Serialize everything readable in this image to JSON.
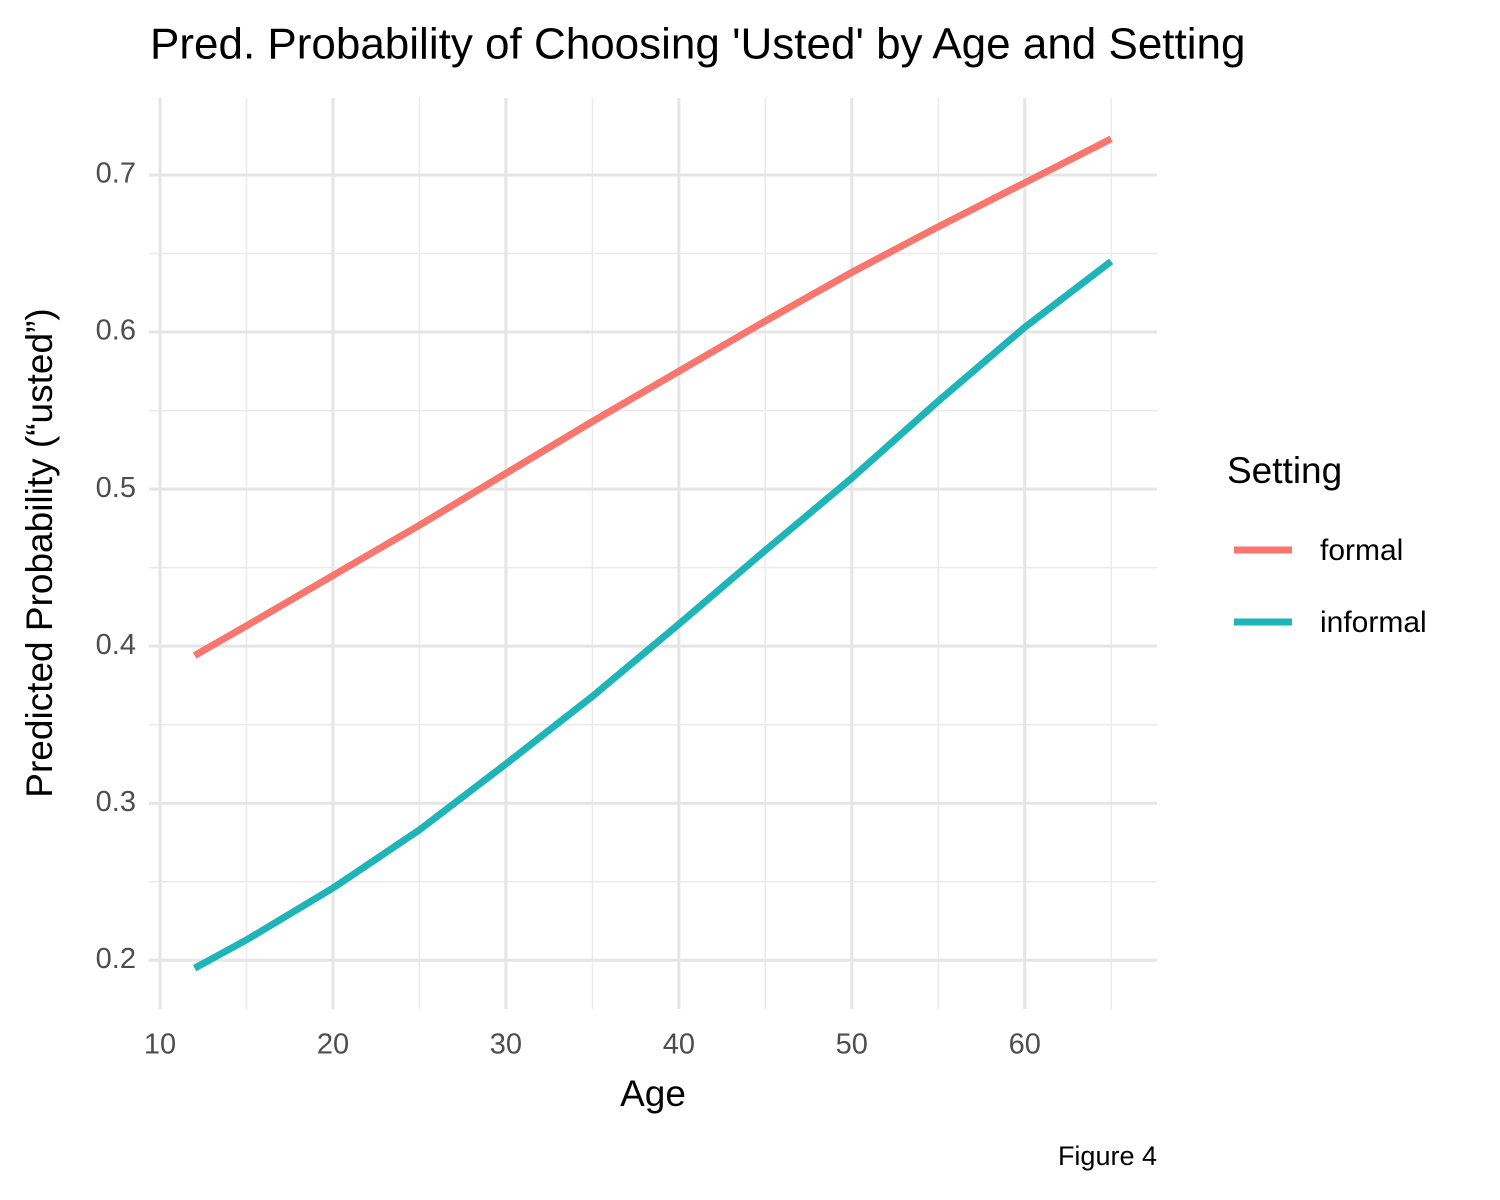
{
  "chart_data": {
    "type": "line",
    "title": "Pred. Probability of Choosing 'Usted' by Age and Setting",
    "x_label": "Age",
    "y_label": "Predicted Probability (“usted”)",
    "caption": "Figure 4",
    "legend_title": "Setting",
    "legend_position": "right",
    "grid": true,
    "x": [
      12,
      15,
      20,
      25,
      30,
      35,
      40,
      45,
      50,
      55,
      60,
      65
    ],
    "series": [
      {
        "name": "formal",
        "color": "#F8766D",
        "values": [
          0.394,
          0.413,
          0.445,
          0.477,
          0.51,
          0.543,
          0.575,
          0.607,
          0.638,
          0.667,
          0.695,
          0.723
        ]
      },
      {
        "name": "informal",
        "color": "#1FB5B8",
        "values": [
          0.195,
          0.213,
          0.246,
          0.283,
          0.325,
          0.368,
          0.414,
          0.461,
          0.507,
          0.556,
          0.603,
          0.645
        ]
      }
    ],
    "xlim": [
      9.35,
      67.65
    ],
    "ylim": [
      0.169,
      0.749
    ],
    "xticks": [
      10,
      20,
      30,
      40,
      50,
      60
    ],
    "yticks": [
      0.2,
      0.3,
      0.4,
      0.5,
      0.6,
      0.7
    ],
    "xminorticks": [
      15,
      25,
      35,
      45,
      55,
      65
    ],
    "yminorticks": [
      0.25,
      0.35,
      0.45,
      0.55,
      0.65
    ]
  }
}
